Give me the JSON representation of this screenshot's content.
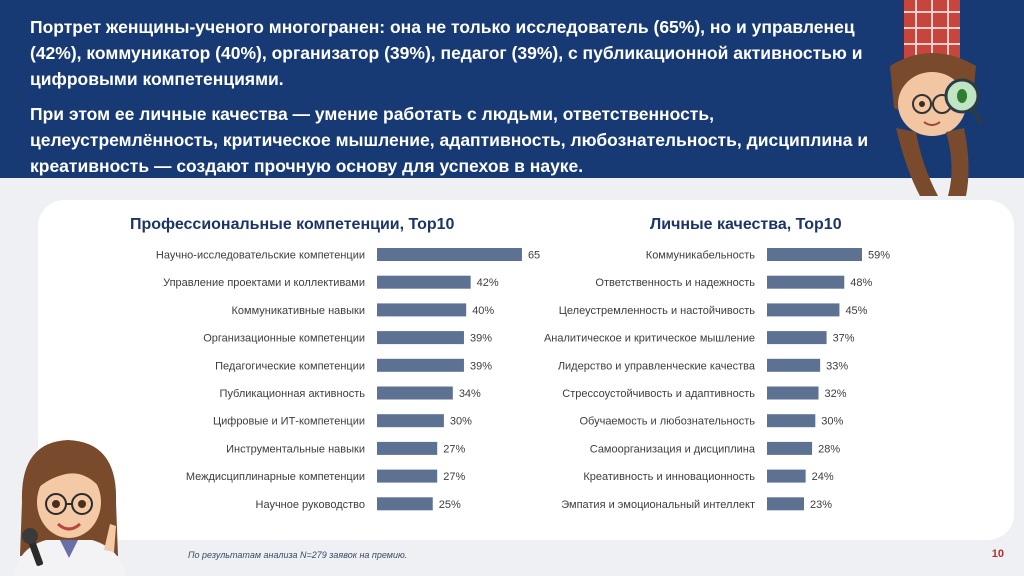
{
  "header": {
    "paragraph1": "Портрет женщины-ученого многогранен: она не только исследователь (65%), но и управленец (42%), коммуникатор (40%), организатор (39%), педагог (39%), с публикационной активностью и цифровыми компетенциями.",
    "paragraph2": "При этом ее личные качества — умение работать с людьми, ответственность, целеустремлённость, критическое мышление, адаптивность, любознательность, дисциплина и креативность — создают прочную основу для успехов в науке."
  },
  "colors": {
    "header_bg": "#173a74",
    "bar": "#5d7293",
    "title": "#1d3566",
    "page_number": "#b03030"
  },
  "chart_data": [
    {
      "type": "bar",
      "orientation": "horizontal",
      "title": "Профессиональные компетенции, Top10",
      "categories": [
        "Научно-исследовательские компетенции",
        "Управление проектами и коллективами",
        "Коммуникативные навыки",
        "Организационные компетенции",
        "Педагогические компетенции",
        "Публикационная активность",
        "Цифровые и ИТ-компетенции",
        "Инструментальные навыки",
        "Междисциплинарные компетенции",
        "Научное руководство"
      ],
      "values": [
        65,
        42,
        40,
        39,
        39,
        34,
        30,
        27,
        27,
        25
      ],
      "value_labels": [
        "65%",
        "42%",
        "40%",
        "39%",
        "39%",
        "34%",
        "30%",
        "27%",
        "27%",
        "25%"
      ],
      "unit": "%",
      "xlim": [
        0,
        100
      ]
    },
    {
      "type": "bar",
      "orientation": "horizontal",
      "title": "Личные качества, Top10",
      "categories": [
        "Коммуникабельность",
        "Ответственность и надежность",
        "Целеустремленность и настойчивость",
        "Аналитическое и критическое мышление",
        "Лидерство и управленческие качества",
        "Стрессоустойчивость и адаптивность",
        "Обучаемость и любознательность",
        "Самоорганизация и дисциплина",
        "Креативность и инновационность",
        "Эмпатия и эмоциональный интеллект"
      ],
      "values": [
        59,
        48,
        45,
        37,
        33,
        32,
        30,
        28,
        24,
        23
      ],
      "value_labels": [
        "59%",
        "48%",
        "45%",
        "37%",
        "33%",
        "32%",
        "30%",
        "28%",
        "24%",
        "23%"
      ],
      "unit": "%",
      "xlim": [
        0,
        100
      ]
    }
  ],
  "footnote": "По результатам анализа N=279 заявок на премию.",
  "page_number": "10",
  "illustrations": {
    "top_right": "scientist-with-magnifier-illustration",
    "bottom_left": "scientist-with-microphone-illustration"
  }
}
